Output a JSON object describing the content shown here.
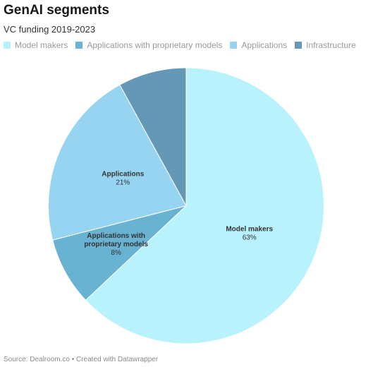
{
  "title": "GenAI segments",
  "subtitle": "VC funding 2019-2023",
  "footer": "Source: Dealroom.co • Created with Datawrapper",
  "chart_data": {
    "type": "pie",
    "title": "GenAI segments",
    "subtitle": "VC funding 2019-2023",
    "legend_placement": "top-left",
    "slices": [
      {
        "name": "Model makers",
        "value": 63,
        "label_lines": [
          "Model makers"
        ],
        "value_label": "63%",
        "color": "#b8f2fd"
      },
      {
        "name": "Applications with proprietary models",
        "value": 8,
        "label_lines": [
          "Applications with",
          "proprietary models"
        ],
        "value_label": "8%",
        "color": "#68b2d2"
      },
      {
        "name": "Applications",
        "value": 21,
        "label_lines": [
          "Applications"
        ],
        "value_label": "21%",
        "color": "#96d4f2"
      },
      {
        "name": "Infrastructure",
        "value": 8,
        "label_lines": [],
        "value_label": "",
        "color": "#6598b6"
      }
    ]
  }
}
